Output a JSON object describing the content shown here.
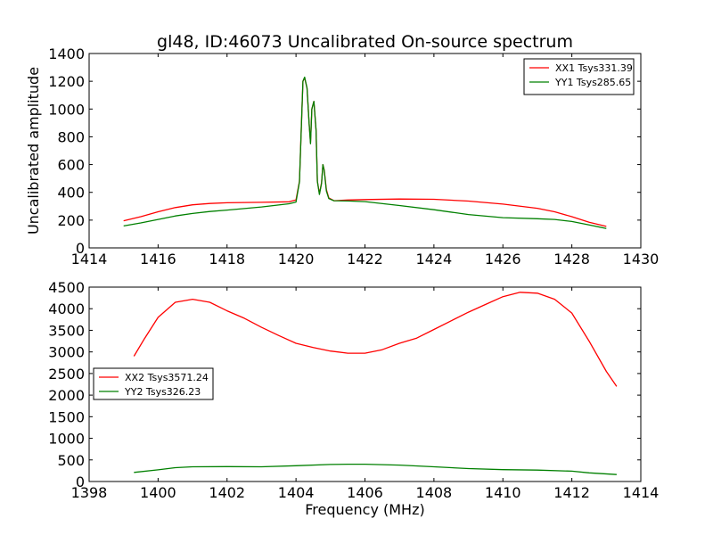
{
  "chart_data": [
    {
      "type": "line",
      "title": "gl48, ID:46073 Uncalibrated On-source spectrum",
      "xlabel": "",
      "ylabel": "Uncalibrated amplitude",
      "xlim": [
        1414,
        1430
      ],
      "ylim": [
        0,
        1400
      ],
      "xticks": [
        "1414",
        "1416",
        "1418",
        "1420",
        "1422",
        "1424",
        "1426",
        "1428",
        "1430"
      ],
      "yticks": [
        "0",
        "200",
        "400",
        "600",
        "800",
        "1000",
        "1200",
        "1400"
      ],
      "legend_position": "top-right",
      "series": [
        {
          "name": "XX1 Tsys331.39",
          "color": "#ff0000",
          "points": [
            [
              1415,
              195
            ],
            [
              1415.5,
              225
            ],
            [
              1416,
              260
            ],
            [
              1416.5,
              290
            ],
            [
              1417,
              310
            ],
            [
              1417.5,
              320
            ],
            [
              1418,
              325
            ],
            [
              1419,
              328
            ],
            [
              1419.8,
              332
            ],
            [
              1420.0,
              345
            ],
            [
              1420.1,
              480
            ],
            [
              1420.2,
              1200
            ],
            [
              1420.25,
              1225
            ],
            [
              1420.32,
              1150
            ],
            [
              1420.38,
              900
            ],
            [
              1420.42,
              760
            ],
            [
              1420.46,
              1000
            ],
            [
              1420.52,
              1055
            ],
            [
              1420.58,
              850
            ],
            [
              1420.62,
              480
            ],
            [
              1420.68,
              390
            ],
            [
              1420.74,
              470
            ],
            [
              1420.78,
              600
            ],
            [
              1420.82,
              560
            ],
            [
              1420.88,
              420
            ],
            [
              1420.95,
              360
            ],
            [
              1421.1,
              340
            ],
            [
              1421.5,
              345
            ],
            [
              1422,
              348
            ],
            [
              1423,
              352
            ],
            [
              1424,
              350
            ],
            [
              1425,
              337
            ],
            [
              1426,
              315
            ],
            [
              1427,
              285
            ],
            [
              1427.5,
              260
            ],
            [
              1428,
              225
            ],
            [
              1428.5,
              185
            ],
            [
              1429,
              155
            ]
          ]
        },
        {
          "name": "YY1 Tsys285.65",
          "color": "#008000",
          "points": [
            [
              1415,
              158
            ],
            [
              1415.5,
              180
            ],
            [
              1416,
              205
            ],
            [
              1416.5,
              230
            ],
            [
              1417,
              248
            ],
            [
              1417.5,
              262
            ],
            [
              1418,
              272
            ],
            [
              1419,
              295
            ],
            [
              1419.8,
              318
            ],
            [
              1420.0,
              330
            ],
            [
              1420.1,
              475
            ],
            [
              1420.2,
              1200
            ],
            [
              1420.25,
              1230
            ],
            [
              1420.32,
              1150
            ],
            [
              1420.38,
              900
            ],
            [
              1420.42,
              750
            ],
            [
              1420.46,
              1000
            ],
            [
              1420.52,
              1055
            ],
            [
              1420.58,
              850
            ],
            [
              1420.62,
              480
            ],
            [
              1420.68,
              385
            ],
            [
              1420.74,
              465
            ],
            [
              1420.78,
              600
            ],
            [
              1420.82,
              555
            ],
            [
              1420.88,
              410
            ],
            [
              1420.95,
              355
            ],
            [
              1421.1,
              340
            ],
            [
              1421.5,
              338
            ],
            [
              1422,
              333
            ],
            [
              1423,
              305
            ],
            [
              1424,
              275
            ],
            [
              1425,
              240
            ],
            [
              1426,
              218
            ],
            [
              1427,
              210
            ],
            [
              1427.5,
              205
            ],
            [
              1428,
              190
            ],
            [
              1428.5,
              165
            ],
            [
              1429,
              140
            ]
          ]
        }
      ]
    },
    {
      "type": "line",
      "title": "",
      "xlabel": "Frequency (MHz)",
      "ylabel": "",
      "xlim": [
        1398,
        1414
      ],
      "ylim": [
        0,
        4500
      ],
      "xticks": [
        "1398",
        "1400",
        "1402",
        "1404",
        "1406",
        "1408",
        "1410",
        "1412",
        "1414"
      ],
      "yticks": [
        "0",
        "500",
        "1000",
        "1500",
        "2000",
        "2500",
        "3000",
        "3500",
        "4000",
        "4500"
      ],
      "legend_position": "center-left",
      "series": [
        {
          "name": "XX2 Tsys3571.24",
          "color": "#ff0000",
          "points": [
            [
              1399.3,
              2900
            ],
            [
              1399.6,
              3300
            ],
            [
              1400,
              3800
            ],
            [
              1400.5,
              4150
            ],
            [
              1401,
              4220
            ],
            [
              1401.5,
              4150
            ],
            [
              1402,
              3950
            ],
            [
              1402.5,
              3780
            ],
            [
              1403,
              3570
            ],
            [
              1403.5,
              3380
            ],
            [
              1404,
              3200
            ],
            [
              1404.5,
              3100
            ],
            [
              1405,
              3020
            ],
            [
              1405.5,
              2970
            ],
            [
              1406,
              2970
            ],
            [
              1406.5,
              3050
            ],
            [
              1407,
              3200
            ],
            [
              1407.5,
              3320
            ],
            [
              1408,
              3520
            ],
            [
              1408.5,
              3720
            ],
            [
              1409,
              3920
            ],
            [
              1409.5,
              4100
            ],
            [
              1410,
              4280
            ],
            [
              1410.5,
              4380
            ],
            [
              1411,
              4360
            ],
            [
              1411.5,
              4220
            ],
            [
              1412,
              3900
            ],
            [
              1412.5,
              3250
            ],
            [
              1413,
              2550
            ],
            [
              1413.3,
              2200
            ]
          ]
        },
        {
          "name": "YY2 Tsys326.23",
          "color": "#008000",
          "points": [
            [
              1399.3,
              210
            ],
            [
              1400,
              270
            ],
            [
              1400.5,
              320
            ],
            [
              1401,
              340
            ],
            [
              1402,
              345
            ],
            [
              1403,
              340
            ],
            [
              1404,
              365
            ],
            [
              1405,
              395
            ],
            [
              1405.5,
              400
            ],
            [
              1406,
              400
            ],
            [
              1407,
              380
            ],
            [
              1408,
              340
            ],
            [
              1409,
              300
            ],
            [
              1410,
              275
            ],
            [
              1411,
              265
            ],
            [
              1412,
              240
            ],
            [
              1412.5,
              200
            ],
            [
              1413.3,
              160
            ]
          ]
        }
      ]
    }
  ]
}
